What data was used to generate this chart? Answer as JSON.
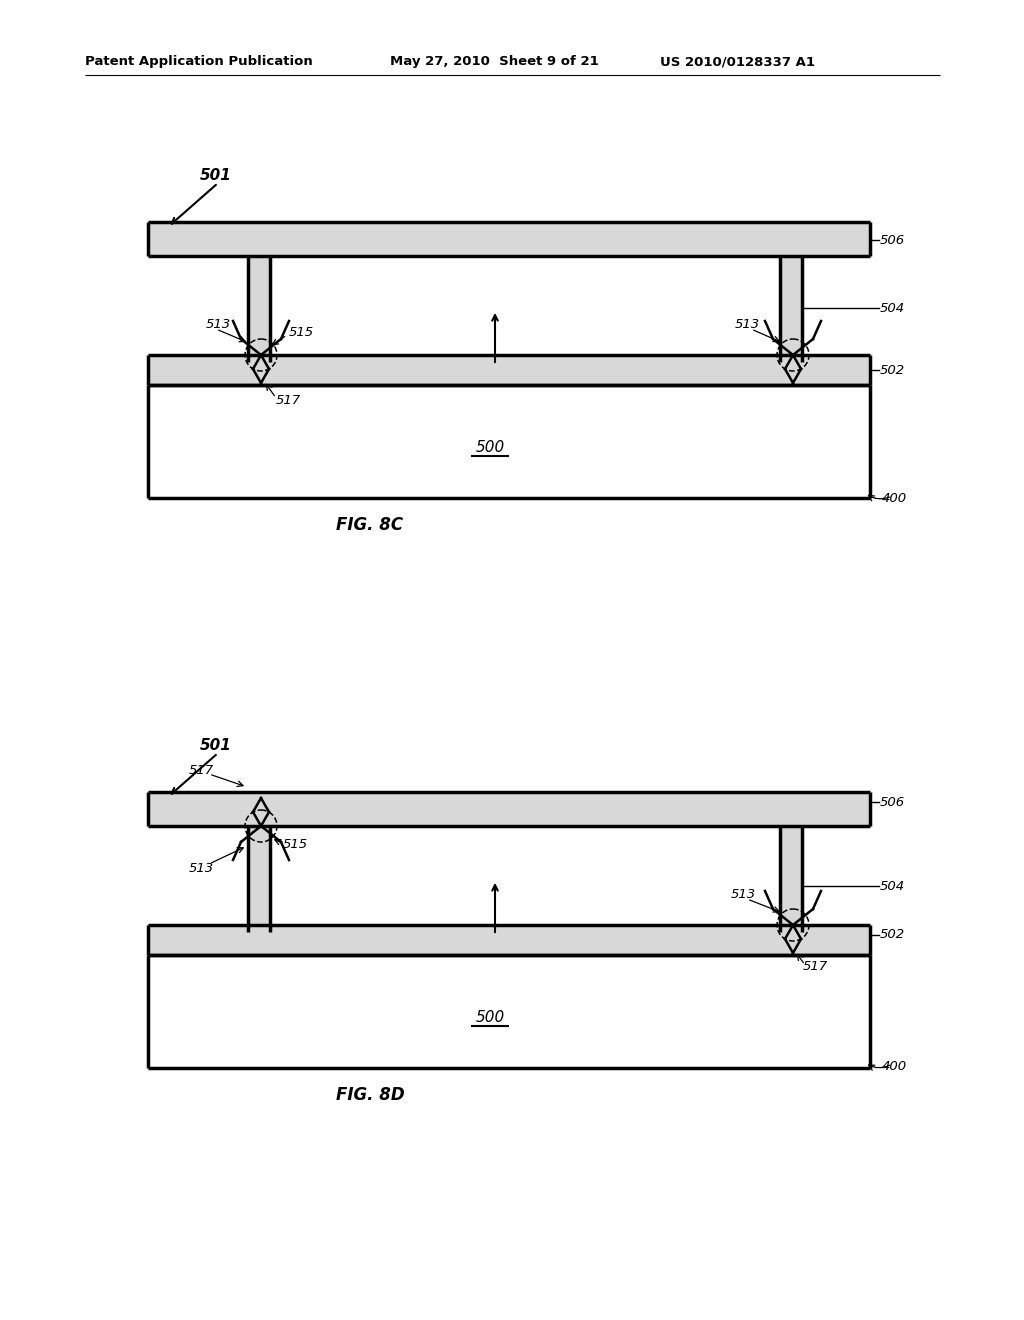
{
  "header_left": "Patent Application Publication",
  "header_mid": "May 27, 2010  Sheet 9 of 21",
  "header_right": "US 2010/0128337 A1",
  "fig_c_label": "FIG. 8C",
  "fig_d_label": "FIG. 8D",
  "background": "#ffffff",
  "line_color": "#000000"
}
